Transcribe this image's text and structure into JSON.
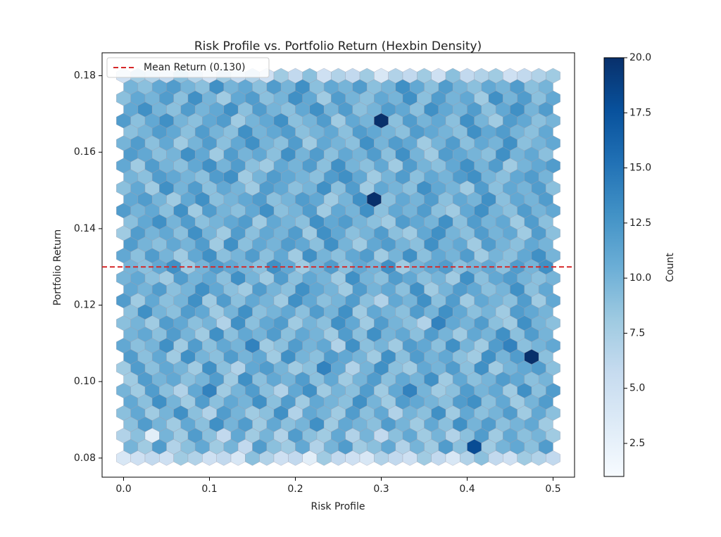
{
  "chart_data": {
    "type": "hexbin",
    "title": "Risk Profile vs. Portfolio Return (Hexbin Density)",
    "xlabel": "Risk Profile",
    "ylabel": "Portfolio Return",
    "colorbar_label": "Count",
    "colormap": "Blues",
    "xlim": [
      -0.025,
      0.525
    ],
    "ylim": [
      0.075,
      0.186
    ],
    "xticks": [
      {
        "value": 0,
        "label": "0.0"
      },
      0.1,
      0.2,
      0.3,
      0.4,
      0.5
    ],
    "yticks": [
      0.08,
      {
        "value": 0.1,
        "label": "0.10"
      },
      0.12,
      0.14,
      0.16,
      0.18
    ],
    "clim": [
      1,
      20
    ],
    "cticks": [
      2.5,
      {
        "value": 5,
        "label": "5.0"
      },
      7.5,
      {
        "value": 10,
        "label": "10.0"
      },
      12.5,
      {
        "value": 15,
        "label": "15.0"
      },
      17.5,
      {
        "value": 20,
        "label": "20.0"
      }
    ],
    "xextent": [
      0,
      0.5
    ],
    "yextent": [
      0.08,
      0.18
    ],
    "gridsize": [
      30,
      17
    ],
    "mean_line": {
      "value": 0.13,
      "label": "Mean Return (0.130)",
      "color": "#d62728"
    },
    "legend": "upper left",
    "counts": [
      [
        4,
        5,
        6,
        5,
        8,
        7,
        5,
        6,
        4,
        9,
        7,
        5,
        6,
        3,
        8,
        6,
        5,
        4,
        7,
        6,
        5,
        8,
        6,
        4,
        7,
        9,
        6,
        5,
        8,
        7,
        6
      ],
      [
        7,
        9,
        3,
        10,
        8,
        12,
        9,
        6,
        11,
        8,
        10,
        7,
        12,
        9,
        8,
        11,
        7,
        10,
        6,
        9,
        11,
        8,
        10,
        7,
        9,
        12,
        8,
        11,
        9,
        10,
        8
      ],
      [
        9,
        11,
        8,
        10,
        13,
        9,
        7,
        12,
        10,
        8,
        9,
        13,
        7,
        11,
        10,
        8,
        12,
        9,
        11,
        7,
        10,
        9,
        13,
        8,
        11,
        9,
        10,
        12,
        8,
        11,
        9
      ],
      [
        10,
        8,
        12,
        9,
        7,
        11,
        14,
        8,
        10,
        12,
        9,
        7,
        11,
        13,
        8,
        10,
        9,
        12,
        8,
        11,
        14,
        10,
        8,
        9,
        12,
        10,
        11,
        8,
        13,
        9,
        12
      ],
      [
        8,
        12,
        9,
        11,
        10,
        8,
        13,
        9,
        7,
        11,
        12,
        10,
        8,
        9,
        14,
        11,
        7,
        10,
        13,
        9,
        8,
        11,
        10,
        12,
        9,
        13,
        8,
        10,
        11,
        12,
        9
      ],
      [
        11,
        9,
        10,
        13,
        8,
        12,
        9,
        11,
        10,
        14,
        8,
        9,
        12,
        10,
        11,
        7,
        13,
        9,
        10,
        8,
        12,
        11,
        9,
        13,
        10,
        8,
        12,
        14,
        9,
        10,
        11
      ],
      [
        9,
        10,
        8,
        12,
        11,
        9,
        10,
        7,
        13,
        9,
        11,
        12,
        8,
        10,
        9,
        13,
        11,
        8,
        12,
        10,
        9,
        7,
        14,
        11,
        10,
        12,
        9,
        8,
        13,
        10,
        9
      ],
      [
        12,
        8,
        11,
        9,
        10,
        13,
        8,
        12,
        9,
        11,
        10,
        8,
        13,
        11,
        9,
        10,
        12,
        9,
        7,
        11,
        10,
        13,
        9,
        12,
        8,
        11,
        10,
        9,
        12,
        8,
        11
      ],
      [
        10,
        11,
        9,
        8,
        12,
        10,
        11,
        9,
        13,
        10,
        8,
        12,
        9,
        11,
        10,
        8,
        13,
        10,
        9,
        12,
        11,
        9,
        10,
        8,
        13,
        9,
        11,
        12,
        10,
        9,
        10
      ],
      [
        11,
        9,
        12,
        10,
        8,
        11,
        13,
        9,
        10,
        12,
        9,
        11,
        8,
        13,
        10,
        9,
        11,
        12,
        8,
        10,
        13,
        9,
        11,
        10,
        12,
        8,
        10,
        9,
        11,
        13,
        10
      ],
      [
        8,
        12,
        10,
        11,
        9,
        13,
        10,
        8,
        12,
        9,
        11,
        10,
        12,
        8,
        13,
        11,
        9,
        10,
        12,
        9,
        8,
        11,
        13,
        10,
        9,
        12,
        10,
        11,
        8,
        12,
        9
      ],
      [
        12,
        10,
        11,
        9,
        13,
        8,
        12,
        10,
        9,
        11,
        13,
        9,
        10,
        12,
        8,
        11,
        10,
        13,
        9,
        11,
        10,
        12,
        9,
        8,
        11,
        13,
        10,
        9,
        12,
        10,
        11
      ],
      [
        9,
        11,
        8,
        13,
        10,
        12,
        9,
        11,
        10,
        8,
        12,
        11,
        9,
        10,
        13,
        9,
        12,
        8,
        11,
        10,
        9,
        13,
        11,
        10,
        8,
        12,
        9,
        11,
        10,
        12,
        9
      ],
      [
        11,
        8,
        12,
        10,
        9,
        11,
        13,
        10,
        12,
        9,
        8,
        11,
        10,
        12,
        9,
        13,
        10,
        9,
        11,
        8,
        12,
        10,
        9,
        11,
        13,
        10,
        12,
        8,
        10,
        11,
        12
      ],
      [
        10,
        12,
        9,
        11,
        8,
        10,
        12,
        9,
        11,
        13,
        10,
        9,
        12,
        8,
        11,
        10,
        9,
        13,
        10,
        12,
        11,
        8,
        10,
        12,
        9,
        11,
        10,
        13,
        9,
        10,
        11
      ],
      [
        12,
        9,
        11,
        13,
        10,
        9,
        11,
        12,
        8,
        10,
        11,
        13,
        9,
        10,
        12,
        8,
        11,
        10,
        20,
        9,
        12,
        10,
        11,
        9,
        13,
        10,
        8,
        12,
        11,
        9,
        10
      ],
      [
        9,
        11,
        10,
        12,
        9,
        13,
        10,
        8,
        11,
        12,
        9,
        10,
        13,
        11,
        8,
        12,
        10,
        9,
        11,
        10,
        13,
        9,
        12,
        10,
        11,
        8,
        13,
        10,
        12,
        9,
        11
      ],
      [
        5,
        8,
        7,
        6,
        9,
        7,
        5,
        8,
        6,
        7,
        5,
        8,
        6,
        9,
        5,
        7,
        6,
        8,
        4,
        7,
        6,
        8,
        5,
        9,
        6,
        7,
        8,
        5,
        6,
        7,
        8
      ]
    ],
    "offset_counts": [
      [
        10,
        8,
        12,
        7,
        9,
        11,
        8,
        10,
        6,
        12,
        9,
        8,
        11,
        7,
        10,
        12,
        8,
        9,
        11,
        7,
        10,
        8,
        12,
        9,
        18,
        8,
        10,
        11,
        9,
        12
      ],
      [
        9,
        12,
        10,
        8,
        11,
        9,
        13,
        10,
        12,
        8,
        11,
        9,
        10,
        13,
        8,
        11,
        10,
        9,
        12,
        10,
        8,
        11,
        9,
        13,
        10,
        12,
        9,
        10,
        11,
        8
      ],
      [
        11,
        9,
        13,
        10,
        8,
        12,
        9,
        11,
        10,
        13,
        9,
        12,
        8,
        11,
        10,
        9,
        13,
        10,
        8,
        12,
        11,
        10,
        9,
        12,
        13,
        9,
        11,
        8,
        10,
        12
      ],
      [
        8,
        12,
        10,
        11,
        9,
        10,
        12,
        8,
        13,
        9,
        11,
        10,
        12,
        9,
        11,
        8,
        10,
        12,
        9,
        11,
        10,
        13,
        8,
        11,
        9,
        10,
        12,
        11,
        9,
        10
      ],
      [
        12,
        9,
        11,
        8,
        13,
        10,
        9,
        12,
        10,
        11,
        8,
        13,
        10,
        9,
        12,
        11,
        10,
        8,
        13,
        9,
        12,
        10,
        11,
        9,
        8,
        13,
        10,
        12,
        20,
        9
      ],
      [
        10,
        11,
        9,
        12,
        10,
        8,
        13,
        9,
        11,
        10,
        12,
        9,
        11,
        10,
        8,
        12,
        9,
        13,
        10,
        11,
        9,
        12,
        10,
        8,
        11,
        10,
        13,
        9,
        12,
        10
      ],
      [
        9,
        13,
        10,
        9,
        12,
        11,
        8,
        10,
        13,
        9,
        10,
        11,
        9,
        12,
        10,
        13,
        8,
        11,
        10,
        9,
        12,
        10,
        13,
        11,
        9,
        10,
        8,
        12,
        11,
        10
      ],
      [
        11,
        10,
        12,
        9,
        10,
        13,
        11,
        9,
        8,
        12,
        10,
        9,
        13,
        11,
        10,
        8,
        12,
        10,
        11,
        9,
        13,
        8,
        10,
        12,
        11,
        9,
        10,
        13,
        9,
        11
      ],
      [
        10,
        9,
        11,
        13,
        8,
        10,
        12,
        11,
        10,
        9,
        13,
        11,
        8,
        10,
        12,
        9,
        11,
        10,
        13,
        8,
        10,
        11,
        12,
        9,
        10,
        11,
        9,
        12,
        10,
        13
      ],
      [
        12,
        10,
        9,
        11,
        10,
        12,
        8,
        13,
        9,
        11,
        10,
        12,
        11,
        9,
        13,
        10,
        8,
        11,
        12,
        10,
        9,
        13,
        10,
        11,
        8,
        12,
        10,
        9,
        11,
        10
      ],
      [
        9,
        11,
        13,
        10,
        12,
        9,
        10,
        11,
        12,
        8,
        11,
        10,
        9,
        13,
        11,
        12,
        10,
        9,
        8,
        12,
        11,
        10,
        13,
        9,
        12,
        10,
        11,
        8,
        12,
        9
      ],
      [
        11,
        12,
        10,
        8,
        11,
        13,
        9,
        10,
        11,
        12,
        9,
        10,
        12,
        11,
        8,
        10,
        13,
        20,
        9,
        11,
        10,
        12,
        9,
        11,
        10,
        13,
        9,
        11,
        10,
        12
      ],
      [
        10,
        9,
        12,
        11,
        10,
        9,
        12,
        13,
        8,
        10,
        12,
        11,
        10,
        9,
        12,
        13,
        11,
        8,
        10,
        12,
        9,
        11,
        10,
        12,
        13,
        10,
        9,
        11,
        12,
        10
      ],
      [
        12,
        11,
        9,
        10,
        13,
        11,
        8,
        12,
        10,
        11,
        9,
        13,
        10,
        12,
        9,
        11,
        10,
        12,
        9,
        13,
        10,
        8,
        12,
        11,
        10,
        9,
        13,
        10,
        11,
        9
      ],
      [
        9,
        10,
        12,
        11,
        9,
        12,
        10,
        9,
        13,
        10,
        11,
        12,
        9,
        10,
        11,
        9,
        12,
        11,
        10,
        9,
        12,
        11,
        10,
        9,
        13,
        11,
        12,
        10,
        9,
        11
      ],
      [
        11,
        13,
        10,
        9,
        12,
        10,
        11,
        13,
        9,
        12,
        10,
        9,
        11,
        13,
        10,
        12,
        9,
        10,
        12,
        11,
        9,
        13,
        11,
        10,
        12,
        9,
        11,
        13,
        10,
        12
      ],
      [
        10,
        9,
        11,
        12,
        10,
        9,
        13,
        10,
        11,
        9,
        12,
        10,
        13,
        9,
        11,
        10,
        12,
        9,
        10,
        13,
        11,
        9,
        12,
        10,
        9,
        11,
        10,
        12,
        9,
        10
      ]
    ]
  }
}
